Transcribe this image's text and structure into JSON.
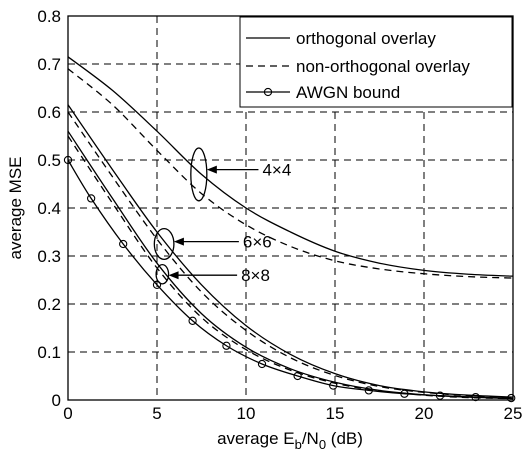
{
  "chart_data": {
    "type": "line",
    "xlabel": "average E_b/N_0 (dB)",
    "xlabel_parts": {
      "pre": "average E",
      "sub1": "b",
      "mid": "/N",
      "sub2": "0",
      "post": " (dB)"
    },
    "ylabel": "average MSE",
    "xlim": [
      0,
      25
    ],
    "ylim": [
      0,
      0.8
    ],
    "x_ticks": [
      0,
      5,
      10,
      15,
      20,
      25
    ],
    "y_ticks": [
      0,
      0.1,
      0.2,
      0.3,
      0.4,
      0.5,
      0.6,
      0.7,
      0.8
    ],
    "x_tick_labels": [
      "0",
      "5",
      "10",
      "15",
      "20",
      "25"
    ],
    "y_tick_labels": [
      "0",
      "0.1",
      "0.2",
      "0.3",
      "0.4",
      "0.5",
      "0.6",
      "0.7",
      "0.8"
    ],
    "grid": true,
    "legend_position": "top-right",
    "legend": [
      {
        "label": "orthogonal overlay",
        "style": "solid"
      },
      {
        "label": "non-orthogonal overlay",
        "style": "dashed"
      },
      {
        "label": "AWGN bound",
        "style": "solid-circle"
      }
    ],
    "series": [
      {
        "group": "4×4",
        "style": "solid",
        "x": [
          0,
          2.5,
          5,
          7.5,
          10,
          12.5,
          15,
          17.5,
          20,
          22.5,
          25
        ],
        "y": [
          0.715,
          0.645,
          0.56,
          0.47,
          0.4,
          0.35,
          0.31,
          0.285,
          0.27,
          0.262,
          0.258
        ]
      },
      {
        "group": "4×4",
        "style": "dashed",
        "x": [
          0,
          2.5,
          5,
          7.5,
          10,
          12.5,
          15,
          17.5,
          20,
          22.5,
          25
        ],
        "y": [
          0.69,
          0.615,
          0.52,
          0.43,
          0.365,
          0.32,
          0.29,
          0.273,
          0.263,
          0.257,
          0.254
        ]
      },
      {
        "group": "6×6",
        "style": "solid",
        "x": [
          0,
          2.5,
          5,
          7.5,
          10,
          12.5,
          15,
          17.5,
          20,
          22.5,
          25
        ],
        "y": [
          0.615,
          0.48,
          0.35,
          0.24,
          0.155,
          0.095,
          0.055,
          0.03,
          0.017,
          0.01,
          0.006
        ]
      },
      {
        "group": "6×6",
        "style": "dashed",
        "x": [
          0,
          2.5,
          5,
          7.5,
          10,
          12.5,
          15,
          17.5,
          20,
          22.5,
          25
        ],
        "y": [
          0.6,
          0.465,
          0.335,
          0.225,
          0.145,
          0.088,
          0.051,
          0.028,
          0.016,
          0.009,
          0.005
        ]
      },
      {
        "group": "8×8",
        "style": "solid",
        "x": [
          0,
          2.5,
          5,
          7.5,
          10,
          12.5,
          15,
          17.5,
          20,
          22.5,
          25
        ],
        "y": [
          0.56,
          0.42,
          0.285,
          0.18,
          0.11,
          0.065,
          0.037,
          0.02,
          0.011,
          0.006,
          0.003
        ]
      },
      {
        "group": "8×8",
        "style": "dashed",
        "x": [
          0,
          2.5,
          5,
          7.5,
          10,
          12.5,
          15,
          17.5,
          20,
          22.5,
          25
        ],
        "y": [
          0.55,
          0.41,
          0.275,
          0.172,
          0.105,
          0.062,
          0.035,
          0.019,
          0.01,
          0.005,
          0.003
        ]
      },
      {
        "group": "AWGN",
        "style": "solid-circle",
        "x": [
          0,
          1.3,
          3.1,
          5,
          7,
          8.9,
          10.9,
          12.9,
          14.9,
          16.9,
          18.9,
          20.9,
          22.9,
          24.9
        ],
        "y": [
          0.5,
          0.42,
          0.325,
          0.24,
          0.165,
          0.113,
          0.075,
          0.05,
          0.03,
          0.02,
          0.013,
          0.009,
          0.006,
          0.004
        ]
      }
    ],
    "annotations": [
      {
        "label": "4×4",
        "ellipse_center": [
          7.35,
          0.47
        ],
        "ellipse_r": [
          0.45,
          0.055
        ],
        "arrow_from": [
          10.7,
          0.48
        ],
        "arrow_to": [
          7.8,
          0.48
        ]
      },
      {
        "label": "6×6",
        "ellipse_center": [
          5.4,
          0.325
        ],
        "ellipse_r": [
          0.55,
          0.032
        ],
        "arrow_from": [
          9.6,
          0.33
        ],
        "arrow_to": [
          5.95,
          0.33
        ]
      },
      {
        "label": "8×8",
        "ellipse_center": [
          5.3,
          0.262
        ],
        "ellipse_r": [
          0.35,
          0.02
        ],
        "arrow_from": [
          9.5,
          0.26
        ],
        "arrow_to": [
          5.65,
          0.26
        ]
      }
    ]
  }
}
